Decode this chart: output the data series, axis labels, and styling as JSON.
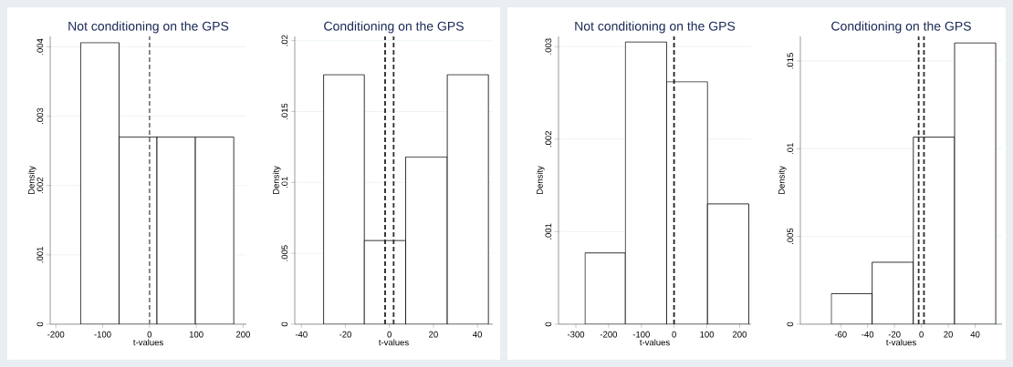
{
  "chart_data": [
    {
      "type": "histogram",
      "title": "Not conditioning on the GPS",
      "xlabel": "t-values",
      "ylabel": "Density",
      "bins": [
        -147,
        -65,
        16,
        98,
        180
      ],
      "values": [
        0.00406,
        0.0027,
        0.0027,
        0.0027
      ],
      "color": "#ffffff",
      "xlim": [
        -212,
        207
      ],
      "ylim": [
        0,
        0.00415
      ],
      "xticks": [
        -200,
        -100,
        0,
        100,
        200
      ],
      "yticks": [
        0,
        {
          "value": 0.001,
          "label": ".001"
        },
        {
          "value": 0.002,
          "label": ".002"
        },
        {
          "value": 0.003,
          "label": ".003"
        },
        {
          "value": 0.004,
          "label": ".004"
        }
      ],
      "grid": "y",
      "ref_lines": [
        {
          "axis": "x",
          "value": 0,
          "color": "#808080",
          "line_style": "dashed"
        }
      ]
    },
    {
      "type": "histogram",
      "title": "Conditioning on the GPS",
      "xlabel": "t-values",
      "ylabel": "Density",
      "bins": [
        -29.9,
        -11.4,
        7.4,
        26.3,
        45
      ],
      "values": [
        0.0176,
        0.0059,
        0.0118,
        0.0176
      ],
      "color": "#ffffff",
      "xlim": [
        -43,
        47
      ],
      "ylim": [
        0,
        0.0203
      ],
      "xticks": [
        -40,
        -20,
        0,
        20,
        40
      ],
      "yticks": [
        0,
        {
          "value": 0.005,
          "label": ".005"
        },
        {
          "value": 0.01,
          "label": ".01"
        },
        {
          "value": 0.015,
          "label": ".015"
        },
        {
          "value": 0.02,
          "label": ".02"
        }
      ],
      "grid": "y",
      "ref_lines": [
        {
          "axis": "x",
          "value": -1.96,
          "color": "#333333",
          "line_style": "dashed"
        },
        {
          "axis": "x",
          "value": 1.96,
          "color": "#333333",
          "line_style": "dashed"
        }
      ]
    },
    {
      "type": "histogram",
      "title": "Not conditioning on the GPS",
      "xlabel": "t-values",
      "ylabel": "Density",
      "bins": [
        -272,
        -149,
        -23,
        102,
        228
      ],
      "values": [
        0.00077,
        0.00305,
        0.00262,
        0.0013
      ],
      "color": "#ffffff",
      "xlim": [
        -353,
        235
      ],
      "ylim": [
        0,
        0.00311
      ],
      "xticks": [
        -300,
        -200,
        -100,
        0,
        100,
        200
      ],
      "yticks": [
        0,
        {
          "value": 0.001,
          "label": ".001"
        },
        {
          "value": 0.002,
          "label": ".002"
        },
        {
          "value": 0.003,
          "label": ".003"
        }
      ],
      "grid": "y",
      "ref_lines": [
        {
          "axis": "x",
          "value": 0,
          "color": "#222222",
          "line_style": "dashed"
        }
      ]
    },
    {
      "type": "histogram",
      "title": "Conditioning on the GPS",
      "xlabel": "t-values",
      "ylabel": "Density",
      "bins": [
        -67,
        -36.6,
        -6,
        24.7,
        55.3
      ],
      "values": [
        0.00174,
        0.00353,
        0.01066,
        0.01603
      ],
      "color": "#ffffff",
      "xlim": [
        -90,
        60
      ],
      "ylim": [
        0,
        0.0164
      ],
      "xticks": [
        -60,
        -40,
        -20,
        0,
        20,
        40
      ],
      "yticks": [
        0,
        {
          "value": 0.005,
          "label": ".005"
        },
        {
          "value": 0.01,
          "label": ".01"
        },
        {
          "value": 0.015,
          "label": ".015"
        }
      ],
      "grid": "y",
      "ref_lines": [
        {
          "axis": "x",
          "value": -1.96,
          "color": "#333333",
          "line_style": "dashed"
        },
        {
          "axis": "x",
          "value": 1.96,
          "color": "#333333",
          "line_style": "dashed"
        }
      ]
    }
  ]
}
